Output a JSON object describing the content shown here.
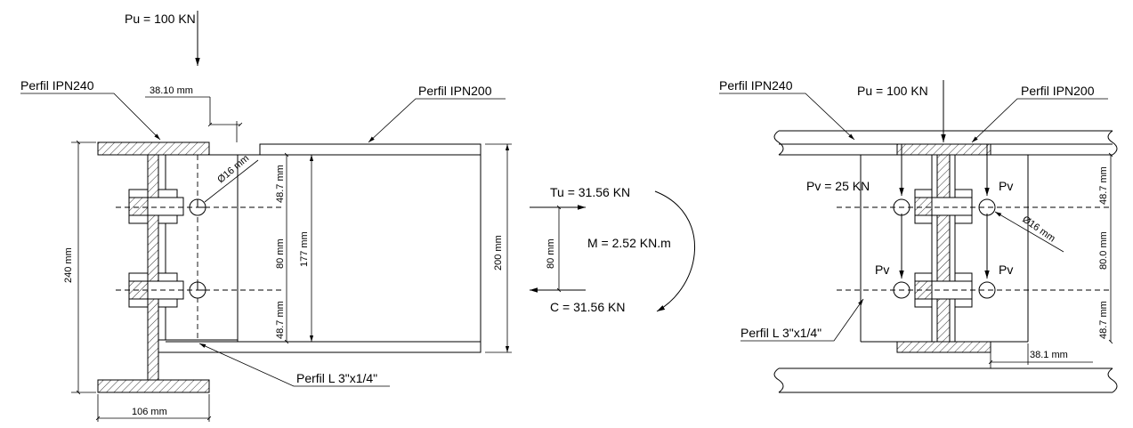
{
  "left": {
    "load": "Pu = 100 KN",
    "beam_column": "Perfil IPN240",
    "beam": "Perfil IPN200",
    "angle": "Perfil L 3\"x1/4\"",
    "gap_dim": "38.10 mm",
    "bolt_dia": "Ø16 mm",
    "dim_240": "240 mm",
    "dim_106": "106 mm",
    "dim_487a": "48.7 mm",
    "dim_80": "80 mm",
    "dim_487b": "48.7 mm",
    "dim_177": "177 mm",
    "dim_200": "200 mm"
  },
  "mid": {
    "tension": "Tu = 31.56 KN",
    "moment": "M = 2.52 KN.m",
    "dim_80": "80 mm",
    "compression": "C = 31.56 KN"
  },
  "right": {
    "beam_column": "Perfil IPN240",
    "load": "Pu = 100 KN",
    "beam": "Perfil IPN200",
    "pv_left": "Pv = 25 KN",
    "pv_tr": "Pv",
    "pv_bl": "Pv",
    "pv_br": "Pv",
    "bolt_dia": "Ø16 mm",
    "dim_487a": "48.7 mm",
    "dim_80": "80.0 mm",
    "dim_487b": "48.7 mm",
    "dim_381": "38.1 mm",
    "angle": "Perfil L 3\"x1/4\""
  }
}
